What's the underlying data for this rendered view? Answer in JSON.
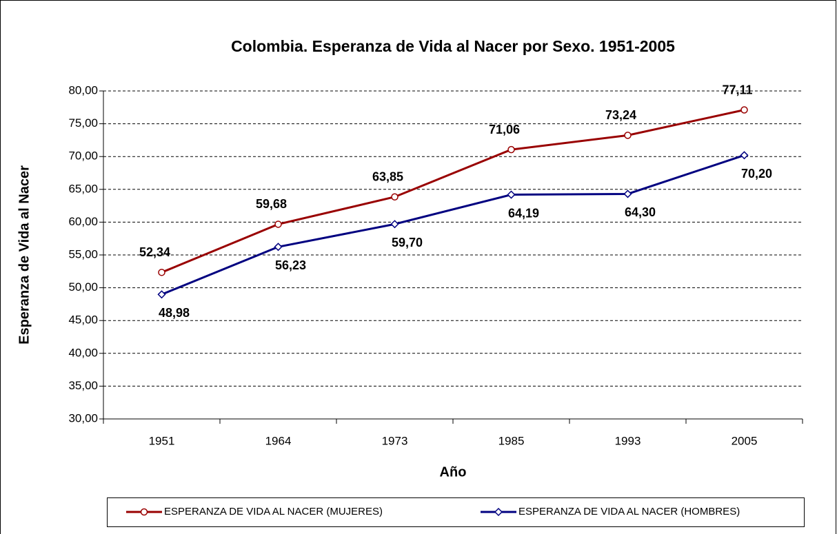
{
  "chart_data": {
    "type": "line",
    "title": "Colombia. Esperanza de Vida al Nacer por Sexo. 1951-2005",
    "x_label": "Año",
    "y_label": "Esperanza de Vida al Nacer",
    "categories": [
      "1951",
      "1964",
      "1973",
      "1985",
      "1993",
      "2005"
    ],
    "series": [
      {
        "name": "ESPERANZA DE VIDA AL NACER (MUJERES)",
        "color": "#990000",
        "marker": "circle",
        "values": [
          52.34,
          59.68,
          63.85,
          71.06,
          73.24,
          77.11
        ],
        "value_labels": [
          "52,34",
          "59,68",
          "63,85",
          "71,06",
          "73,24",
          "77,11"
        ]
      },
      {
        "name": "ESPERANZA DE VIDA AL NACER (HOMBRES)",
        "color": "#000080",
        "marker": "diamond",
        "values": [
          48.98,
          56.23,
          59.7,
          64.19,
          64.3,
          70.2
        ],
        "value_labels": [
          "48,98",
          "56,23",
          "59,70",
          "64,19",
          "64,30",
          "70,20"
        ]
      }
    ],
    "ylim": [
      30,
      80
    ],
    "yticks": [
      {
        "value": 30,
        "label": "30,00"
      },
      {
        "value": 35,
        "label": "35,00"
      },
      {
        "value": 40,
        "label": "40,00"
      },
      {
        "value": 45,
        "label": "45,00"
      },
      {
        "value": 50,
        "label": "50,00"
      },
      {
        "value": 55,
        "label": "55,00"
      },
      {
        "value": 60,
        "label": "60,00"
      },
      {
        "value": 65,
        "label": "65,00"
      },
      {
        "value": 70,
        "label": "70,00"
      },
      {
        "value": 75,
        "label": "75,00"
      },
      {
        "value": 80,
        "label": "80,00"
      }
    ],
    "grid": true,
    "legend": "bottom"
  }
}
